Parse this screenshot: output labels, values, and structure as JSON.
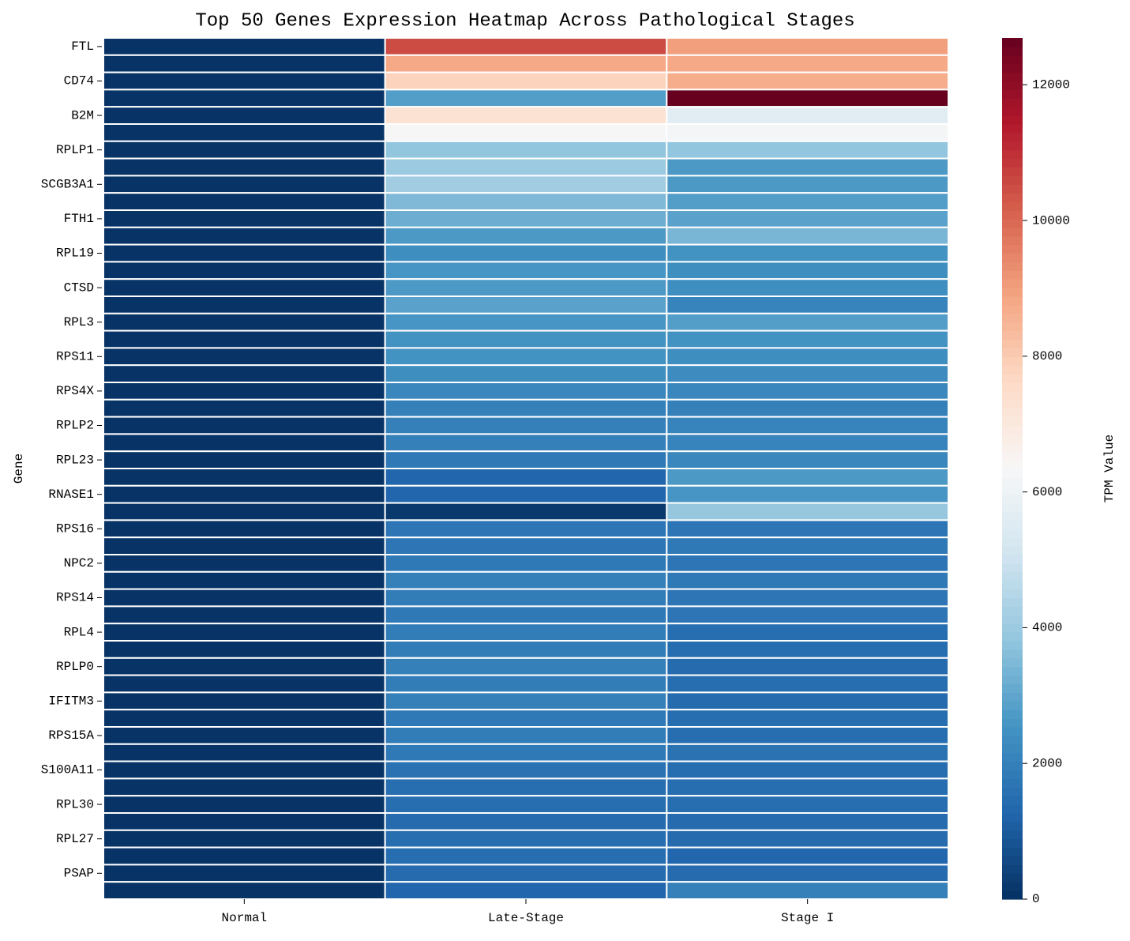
{
  "chart_data": {
    "type": "heatmap",
    "title": "Top 50 Genes Expression Heatmap Across Pathological Stages",
    "ylabel": "Gene",
    "colorbar_label": "TPM Value",
    "colormap": "RdBu_r",
    "x": [
      "Normal",
      "Late-Stage",
      "Stage I"
    ],
    "y": [
      "FTL",
      null,
      "CD74",
      null,
      "B2M",
      null,
      "RPLP1",
      null,
      "SCGB3A1",
      null,
      "FTH1",
      null,
      "RPL19",
      null,
      "CTSD",
      null,
      "RPL3",
      null,
      "RPS11",
      null,
      "RPS4X",
      null,
      "RPLP2",
      null,
      "RPL23",
      null,
      "RNASE1",
      null,
      "RPS16",
      null,
      "NPC2",
      null,
      "RPS14",
      null,
      "RPL4",
      null,
      "RPLP0",
      null,
      "IFITM3",
      null,
      "RPS15A",
      null,
      "S100A11",
      null,
      "RPL30",
      null,
      "RPL27",
      null,
      "PSAP",
      null
    ],
    "values": [
      [
        80,
        10500,
        9000
      ],
      [
        80,
        8800,
        8800
      ],
      [
        80,
        7800,
        8700
      ],
      [
        80,
        2800,
        12690
      ],
      [
        80,
        7300,
        5600
      ],
      [
        80,
        6300,
        6200
      ],
      [
        80,
        3800,
        3800
      ],
      [
        80,
        4000,
        2700
      ],
      [
        80,
        4100,
        2700
      ],
      [
        80,
        3500,
        2800
      ],
      [
        80,
        3200,
        2900
      ],
      [
        80,
        2700,
        3400
      ],
      [
        80,
        2400,
        2500
      ],
      [
        80,
        2600,
        2400
      ],
      [
        80,
        2700,
        2400
      ],
      [
        80,
        2900,
        2100
      ],
      [
        80,
        2600,
        2800
      ],
      [
        80,
        2500,
        2500
      ],
      [
        80,
        2500,
        2400
      ],
      [
        80,
        2400,
        2300
      ],
      [
        80,
        2200,
        2200
      ],
      [
        80,
        2000,
        2000
      ],
      [
        80,
        2000,
        2100
      ],
      [
        80,
        2000,
        2100
      ],
      [
        80,
        1800,
        2200
      ],
      [
        80,
        1300,
        2700
      ],
      [
        80,
        1300,
        2600
      ],
      [
        80,
        200,
        3900
      ],
      [
        80,
        1700,
        1700
      ],
      [
        80,
        1700,
        1800
      ],
      [
        80,
        1800,
        1700
      ],
      [
        80,
        2000,
        1800
      ],
      [
        80,
        1900,
        1700
      ],
      [
        80,
        1800,
        1700
      ],
      [
        80,
        1900,
        1500
      ],
      [
        80,
        1900,
        1500
      ],
      [
        80,
        2000,
        1400
      ],
      [
        80,
        1900,
        1500
      ],
      [
        80,
        2000,
        1400
      ],
      [
        80,
        1800,
        1500
      ],
      [
        80,
        1900,
        1500
      ],
      [
        80,
        1800,
        1600
      ],
      [
        80,
        1600,
        1500
      ],
      [
        80,
        1500,
        1500
      ],
      [
        80,
        1500,
        1500
      ],
      [
        80,
        1400,
        1400
      ],
      [
        80,
        1500,
        1400
      ],
      [
        80,
        1500,
        1300
      ],
      [
        80,
        1400,
        1400
      ],
      [
        80,
        1300,
        2000
      ]
    ],
    "zlim": [
      0,
      12690
    ],
    "zticks": [
      0,
      2000,
      4000,
      6000,
      8000,
      10000,
      12000
    ]
  }
}
